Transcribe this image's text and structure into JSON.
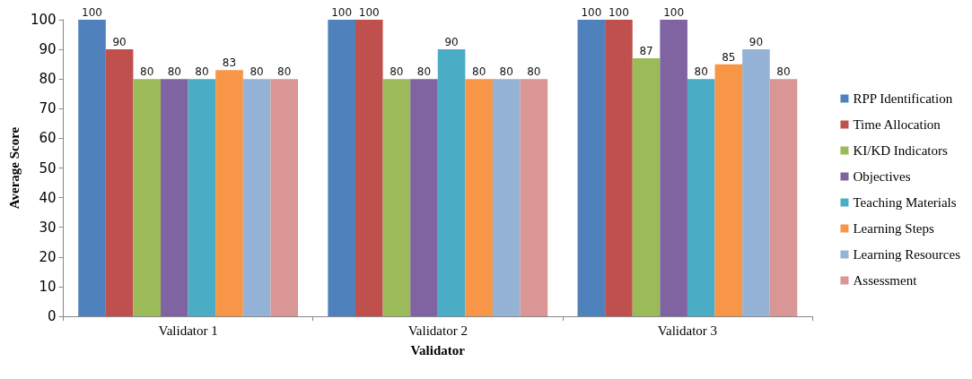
{
  "chart_data": {
    "type": "bar",
    "xlabel": "Validator",
    "ylabel": "Average Score",
    "categories": [
      "Validator 1",
      "Validator 2",
      "Validator 3"
    ],
    "series": [
      {
        "name": "RPP Identification",
        "color": "#4f81bd",
        "values": [
          100,
          100,
          100
        ]
      },
      {
        "name": "Time Allocation",
        "color": "#c0504d",
        "values": [
          90,
          100,
          100
        ]
      },
      {
        "name": "KI/KD Indicators",
        "color": "#9bbb59",
        "values": [
          80,
          80,
          87
        ]
      },
      {
        "name": "Objectives",
        "color": "#8064a2",
        "values": [
          80,
          80,
          100
        ]
      },
      {
        "name": "Teaching Materials",
        "color": "#4bacc6",
        "values": [
          80,
          90,
          80
        ]
      },
      {
        "name": "Learning Steps",
        "color": "#f79646",
        "values": [
          83,
          80,
          85
        ]
      },
      {
        "name": "Learning Resources",
        "color": "#95b3d7",
        "values": [
          80,
          80,
          90
        ]
      },
      {
        "name": "Assessment",
        "color": "#d99694",
        "values": [
          80,
          80,
          80
        ]
      }
    ],
    "ylim": [
      0,
      100
    ],
    "yticks": [
      0,
      10,
      20,
      30,
      40,
      50,
      60,
      70,
      80,
      90,
      100
    ],
    "grid": false,
    "legend": "right",
    "data_labels": true
  }
}
